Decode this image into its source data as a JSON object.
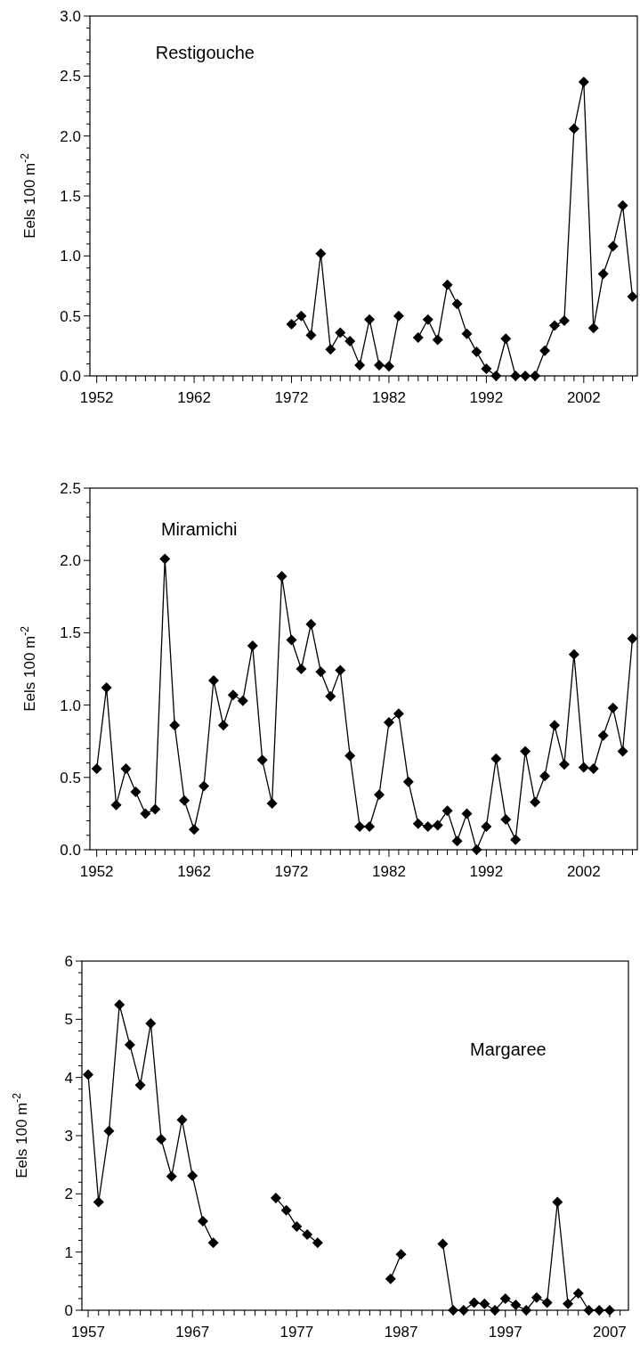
{
  "chart_data": [
    {
      "type": "line",
      "title": "Restigouche",
      "ylabel": "Eels 100 m$^{-2}$",
      "marker": "diamond",
      "line_style": "solid",
      "x": [
        1972,
        1973,
        1974,
        1975,
        1976,
        1977,
        1978,
        1979,
        1980,
        1981,
        1982,
        1983,
        1984,
        1985,
        1986,
        1987,
        1988,
        1989,
        1990,
        1991,
        1992,
        1993,
        1994,
        1995,
        1996,
        1997,
        1998,
        1999,
        2000,
        2001,
        2002,
        2003,
        2004,
        2005,
        2006,
        2007
      ],
      "series": [
        {
          "color": "#000000",
          "values": [
            0.43,
            0.5,
            0.34,
            1.02,
            0.22,
            0.36,
            0.29,
            0.09,
            0.47,
            0.09,
            0.08,
            0.5,
            null,
            0.32,
            0.47,
            0.3,
            0.76,
            0.6,
            0.35,
            0.2,
            0.06,
            0.0,
            0.31,
            0,
            0,
            0,
            0.21,
            0.42,
            0.46,
            2.06,
            2.45,
            0.4,
            0.85,
            1.08,
            1.42,
            0.66
          ]
        }
      ],
      "xlim": [
        1951.3,
        2007.5
      ],
      "xticks": [
        1952,
        {
          "value": 1953,
          "label": null
        },
        {
          "value": 1954,
          "label": null
        },
        {
          "value": 1955,
          "label": null
        },
        {
          "value": 1956,
          "label": null
        },
        {
          "value": 1957,
          "label": null
        },
        {
          "value": 1958,
          "label": null
        },
        {
          "value": 1959,
          "label": null
        },
        {
          "value": 1960,
          "label": null
        },
        {
          "value": 1961,
          "label": null
        },
        1962,
        {
          "value": 1963,
          "label": null
        },
        {
          "value": 1964,
          "label": null
        },
        {
          "value": 1965,
          "label": null
        },
        {
          "value": 1966,
          "label": null
        },
        {
          "value": 1967,
          "label": null
        },
        {
          "value": 1968,
          "label": null
        },
        {
          "value": 1969,
          "label": null
        },
        {
          "value": 1970,
          "label": null
        },
        {
          "value": 1971,
          "label": null
        },
        1972,
        {
          "value": 1973,
          "label": null
        },
        {
          "value": 1974,
          "label": null
        },
        {
          "value": 1975,
          "label": null
        },
        {
          "value": 1976,
          "label": null
        },
        {
          "value": 1977,
          "label": null
        },
        {
          "value": 1978,
          "label": null
        },
        {
          "value": 1979,
          "label": null
        },
        {
          "value": 1980,
          "label": null
        },
        {
          "value": 1981,
          "label": null
        },
        1982,
        {
          "value": 1983,
          "label": null
        },
        {
          "value": 1984,
          "label": null
        },
        {
          "value": 1985,
          "label": null
        },
        {
          "value": 1986,
          "label": null
        },
        {
          "value": 1987,
          "label": null
        },
        {
          "value": 1988,
          "label": null
        },
        {
          "value": 1989,
          "label": null
        },
        {
          "value": 1990,
          "label": null
        },
        {
          "value": 1991,
          "label": null
        },
        1992,
        {
          "value": 1993,
          "label": null
        },
        {
          "value": 1994,
          "label": null
        },
        {
          "value": 1995,
          "label": null
        },
        {
          "value": 1996,
          "label": null
        },
        {
          "value": 1997,
          "label": null
        },
        {
          "value": 1998,
          "label": null
        },
        {
          "value": 1999,
          "label": null
        },
        {
          "value": 2000,
          "label": null
        },
        {
          "value": 2001,
          "label": null
        },
        2002,
        {
          "value": 2003,
          "label": null
        },
        {
          "value": 2004,
          "label": null
        },
        {
          "value": 2005,
          "label": null
        },
        {
          "value": 2006,
          "label": null
        },
        {
          "value": 2007,
          "label": null
        }
      ],
      "ylim": [
        0,
        3
      ],
      "yticks": [
        {
          "value": 0,
          "label": "0.0"
        },
        {
          "value": 0.1,
          "label": null
        },
        {
          "value": 0.2,
          "label": null
        },
        {
          "value": 0.3,
          "label": null
        },
        {
          "value": 0.4,
          "label": null
        },
        {
          "value": 0.5,
          "label": "0.5"
        },
        {
          "value": 0.6,
          "label": null
        },
        {
          "value": 0.7,
          "label": null
        },
        {
          "value": 0.8,
          "label": null
        },
        {
          "value": 0.9,
          "label": null
        },
        {
          "value": 1,
          "label": "1.0"
        },
        {
          "value": 1.1,
          "label": null
        },
        {
          "value": 1.2,
          "label": null
        },
        {
          "value": 1.3,
          "label": null
        },
        {
          "value": 1.4,
          "label": null
        },
        {
          "value": 1.5,
          "label": "1.5"
        },
        {
          "value": 1.6,
          "label": null
        },
        {
          "value": 1.7,
          "label": null
        },
        {
          "value": 1.8,
          "label": null
        },
        {
          "value": 1.9,
          "label": null
        },
        {
          "value": 2,
          "label": "2.0"
        },
        {
          "value": 2.1,
          "label": null
        },
        {
          "value": 2.2,
          "label": null
        },
        {
          "value": 2.3,
          "label": null
        },
        {
          "value": 2.4,
          "label": null
        },
        {
          "value": 2.5,
          "label": "2.5"
        },
        {
          "value": 2.6,
          "label": null
        },
        {
          "value": 2.7,
          "label": null
        },
        {
          "value": 2.8,
          "label": null
        },
        {
          "value": 2.9,
          "label": null
        },
        {
          "value": 3,
          "label": "3.0"
        }
      ]
    },
    {
      "type": "line",
      "title": "Miramichi",
      "ylabel": "Eels 100 m$^{-2}$",
      "marker": "diamond",
      "line_style": "solid",
      "x": [
        1952,
        1953,
        1954,
        1955,
        1956,
        1957,
        1958,
        1959,
        1960,
        1961,
        1962,
        1963,
        1964,
        1965,
        1966,
        1967,
        1968,
        1969,
        1970,
        1971,
        1972,
        1973,
        1974,
        1975,
        1976,
        1977,
        1978,
        1979,
        1980,
        1981,
        1982,
        1983,
        1984,
        1985,
        1986,
        1987,
        1988,
        1989,
        1990,
        1991,
        1992,
        1993,
        1994,
        1995,
        1996,
        1997,
        1998,
        1999,
        2000,
        2001,
        2002,
        2003,
        2004,
        2005,
        2006,
        2007
      ],
      "series": [
        {
          "color": "#000000",
          "values": [
            0.56,
            1.12,
            0.31,
            0.56,
            0.4,
            0.25,
            0.28,
            2.01,
            0.86,
            0.34,
            0.14,
            0.44,
            1.17,
            0.86,
            1.07,
            1.03,
            1.41,
            0.62,
            0.32,
            1.89,
            1.45,
            1.25,
            1.56,
            1.23,
            1.06,
            1.24,
            0.65,
            0.16,
            0.16,
            0.38,
            0.88,
            0.94,
            0.47,
            0.18,
            0.16,
            0.17,
            0.27,
            0.06,
            0.25,
            0.0,
            0.16,
            0.63,
            0.21,
            0.07,
            0.68,
            0.33,
            0.51,
            0.86,
            0.59,
            1.35,
            0.57,
            0.56,
            0.79,
            0.98,
            0.68,
            1.46
          ]
        }
      ],
      "xlim": [
        1951.3,
        2007.5
      ],
      "xticks": [
        1952,
        {
          "value": 1953,
          "label": null
        },
        {
          "value": 1954,
          "label": null
        },
        {
          "value": 1955,
          "label": null
        },
        {
          "value": 1956,
          "label": null
        },
        {
          "value": 1957,
          "label": null
        },
        {
          "value": 1958,
          "label": null
        },
        {
          "value": 1959,
          "label": null
        },
        {
          "value": 1960,
          "label": null
        },
        {
          "value": 1961,
          "label": null
        },
        1962,
        {
          "value": 1963,
          "label": null
        },
        {
          "value": 1964,
          "label": null
        },
        {
          "value": 1965,
          "label": null
        },
        {
          "value": 1966,
          "label": null
        },
        {
          "value": 1967,
          "label": null
        },
        {
          "value": 1968,
          "label": null
        },
        {
          "value": 1969,
          "label": null
        },
        {
          "value": 1970,
          "label": null
        },
        {
          "value": 1971,
          "label": null
        },
        1972,
        {
          "value": 1973,
          "label": null
        },
        {
          "value": 1974,
          "label": null
        },
        {
          "value": 1975,
          "label": null
        },
        {
          "value": 1976,
          "label": null
        },
        {
          "value": 1977,
          "label": null
        },
        {
          "value": 1978,
          "label": null
        },
        {
          "value": 1979,
          "label": null
        },
        {
          "value": 1980,
          "label": null
        },
        {
          "value": 1981,
          "label": null
        },
        1982,
        {
          "value": 1983,
          "label": null
        },
        {
          "value": 1984,
          "label": null
        },
        {
          "value": 1985,
          "label": null
        },
        {
          "value": 1986,
          "label": null
        },
        {
          "value": 1987,
          "label": null
        },
        {
          "value": 1988,
          "label": null
        },
        {
          "value": 1989,
          "label": null
        },
        {
          "value": 1990,
          "label": null
        },
        {
          "value": 1991,
          "label": null
        },
        1992,
        {
          "value": 1993,
          "label": null
        },
        {
          "value": 1994,
          "label": null
        },
        {
          "value": 1995,
          "label": null
        },
        {
          "value": 1996,
          "label": null
        },
        {
          "value": 1997,
          "label": null
        },
        {
          "value": 1998,
          "label": null
        },
        {
          "value": 1999,
          "label": null
        },
        {
          "value": 2000,
          "label": null
        },
        {
          "value": 2001,
          "label": null
        },
        2002,
        {
          "value": 2003,
          "label": null
        },
        {
          "value": 2004,
          "label": null
        },
        {
          "value": 2005,
          "label": null
        },
        {
          "value": 2006,
          "label": null
        },
        {
          "value": 2007,
          "label": null
        }
      ],
      "ylim": [
        0,
        2.5
      ],
      "yticks": [
        {
          "value": 0,
          "label": "0.0"
        },
        {
          "value": 0.1,
          "label": null
        },
        {
          "value": 0.2,
          "label": null
        },
        {
          "value": 0.3,
          "label": null
        },
        {
          "value": 0.4,
          "label": null
        },
        {
          "value": 0.5,
          "label": "0.5"
        },
        {
          "value": 0.6,
          "label": null
        },
        {
          "value": 0.7,
          "label": null
        },
        {
          "value": 0.8,
          "label": null
        },
        {
          "value": 0.9,
          "label": null
        },
        {
          "value": 1,
          "label": "1.0"
        },
        {
          "value": 1.1,
          "label": null
        },
        {
          "value": 1.2,
          "label": null
        },
        {
          "value": 1.3,
          "label": null
        },
        {
          "value": 1.4,
          "label": null
        },
        {
          "value": 1.5,
          "label": "1.5"
        },
        {
          "value": 1.6,
          "label": null
        },
        {
          "value": 1.7,
          "label": null
        },
        {
          "value": 1.8,
          "label": null
        },
        {
          "value": 1.9,
          "label": null
        },
        {
          "value": 2,
          "label": "2.0"
        },
        {
          "value": 2.1,
          "label": null
        },
        {
          "value": 2.2,
          "label": null
        },
        {
          "value": 2.3,
          "label": null
        },
        {
          "value": 2.4,
          "label": null
        },
        {
          "value": 2.5,
          "label": "2.5"
        }
      ]
    },
    {
      "type": "line",
      "title": "Margaree",
      "ylabel": "Eels 100 m$^{-2}$",
      "marker": "diamond",
      "line_style": "solid",
      "x": [
        1957,
        1958,
        1959,
        1960,
        1961,
        1962,
        1963,
        1964,
        1965,
        1966,
        1967,
        1968,
        1969,
        1970,
        1971,
        1972,
        1973,
        1974,
        1975,
        1976,
        1977,
        1978,
        1979,
        1980,
        1981,
        1982,
        1983,
        1984,
        1985,
        1986,
        1987,
        1988,
        1989,
        1990,
        1991,
        1992,
        1993,
        1994,
        1995,
        1996,
        1997,
        1998,
        1999,
        2000,
        2001,
        2002,
        2003,
        2004,
        2005,
        2006,
        2007
      ],
      "series": [
        {
          "color": "#000000",
          "values": [
            4.05,
            1.86,
            3.08,
            5.25,
            4.56,
            3.87,
            4.93,
            2.94,
            2.3,
            3.27,
            2.31,
            1.53,
            1.16,
            null,
            null,
            null,
            null,
            null,
            1.93,
            1.72,
            1.44,
            1.3,
            1.16,
            null,
            null,
            null,
            null,
            null,
            null,
            0.54,
            0.96,
            null,
            null,
            null,
            1.14,
            0,
            0,
            0.13,
            0.11,
            0,
            0.2,
            0.09,
            0,
            0.22,
            0.13,
            1.86,
            0.11,
            0.29,
            0,
            0,
            0
          ]
        }
      ],
      "xlim": [
        1956.4,
        2008.8
      ],
      "xticks": [
        1957,
        {
          "value": 1958,
          "label": null
        },
        {
          "value": 1959,
          "label": null
        },
        {
          "value": 1960,
          "label": null
        },
        {
          "value": 1961,
          "label": null
        },
        {
          "value": 1962,
          "label": null
        },
        {
          "value": 1963,
          "label": null
        },
        {
          "value": 1964,
          "label": null
        },
        {
          "value": 1965,
          "label": null
        },
        {
          "value": 1966,
          "label": null
        },
        1967,
        {
          "value": 1968,
          "label": null
        },
        {
          "value": 1969,
          "label": null
        },
        {
          "value": 1970,
          "label": null
        },
        {
          "value": 1971,
          "label": null
        },
        {
          "value": 1972,
          "label": null
        },
        {
          "value": 1973,
          "label": null
        },
        {
          "value": 1974,
          "label": null
        },
        {
          "value": 1975,
          "label": null
        },
        {
          "value": 1976,
          "label": null
        },
        1977,
        {
          "value": 1978,
          "label": null
        },
        {
          "value": 1979,
          "label": null
        },
        {
          "value": 1980,
          "label": null
        },
        {
          "value": 1981,
          "label": null
        },
        {
          "value": 1982,
          "label": null
        },
        {
          "value": 1983,
          "label": null
        },
        {
          "value": 1984,
          "label": null
        },
        {
          "value": 1985,
          "label": null
        },
        {
          "value": 1986,
          "label": null
        },
        1987,
        {
          "value": 1988,
          "label": null
        },
        {
          "value": 1989,
          "label": null
        },
        {
          "value": 1990,
          "label": null
        },
        {
          "value": 1991,
          "label": null
        },
        {
          "value": 1992,
          "label": null
        },
        {
          "value": 1993,
          "label": null
        },
        {
          "value": 1994,
          "label": null
        },
        {
          "value": 1995,
          "label": null
        },
        {
          "value": 1996,
          "label": null
        },
        1997,
        {
          "value": 1998,
          "label": null
        },
        {
          "value": 1999,
          "label": null
        },
        {
          "value": 2000,
          "label": null
        },
        {
          "value": 2001,
          "label": null
        },
        {
          "value": 2002,
          "label": null
        },
        {
          "value": 2003,
          "label": null
        },
        {
          "value": 2004,
          "label": null
        },
        {
          "value": 2005,
          "label": null
        },
        {
          "value": 2006,
          "label": null
        },
        2007,
        {
          "value": 2008,
          "label": null
        }
      ],
      "ylim": [
        0,
        6
      ],
      "yticks": [
        0,
        {
          "value": 0.2,
          "label": null
        },
        {
          "value": 0.4,
          "label": null
        },
        {
          "value": 0.6,
          "label": null
        },
        {
          "value": 0.8,
          "label": null
        },
        1,
        {
          "value": 1.2,
          "label": null
        },
        {
          "value": 1.4,
          "label": null
        },
        {
          "value": 1.6,
          "label": null
        },
        {
          "value": 1.8,
          "label": null
        },
        2,
        {
          "value": 2.2,
          "label": null
        },
        {
          "value": 2.4,
          "label": null
        },
        {
          "value": 2.6,
          "label": null
        },
        {
          "value": 2.8,
          "label": null
        },
        3,
        {
          "value": 3.2,
          "label": null
        },
        {
          "value": 3.4,
          "label": null
        },
        {
          "value": 3.6,
          "label": null
        },
        {
          "value": 3.8,
          "label": null
        },
        4,
        {
          "value": 4.2,
          "label": null
        },
        {
          "value": 4.4,
          "label": null
        },
        {
          "value": 4.6,
          "label": null
        },
        {
          "value": 4.8,
          "label": null
        },
        5,
        {
          "value": 5.2,
          "label": null
        },
        {
          "value": 5.4,
          "label": null
        },
        {
          "value": 5.6,
          "label": null
        },
        {
          "value": 5.8,
          "label": null
        },
        6
      ]
    }
  ]
}
